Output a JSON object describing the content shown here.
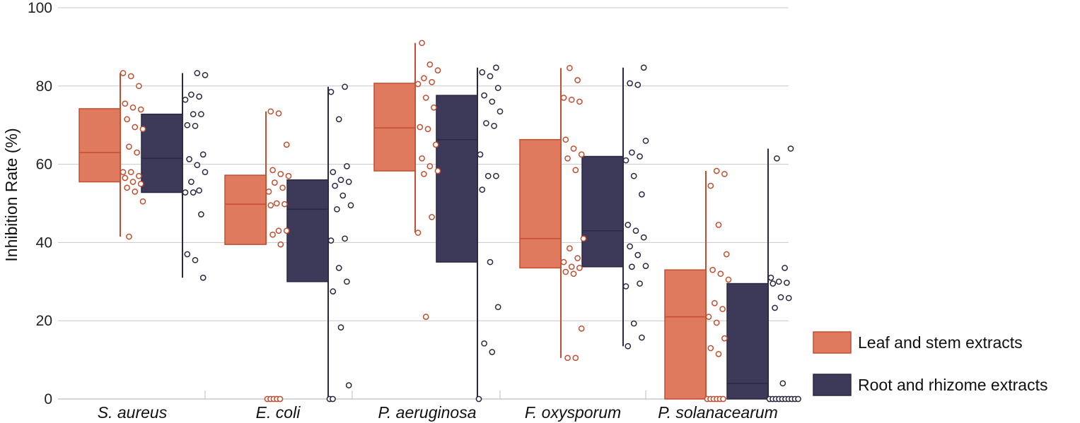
{
  "chart_data": {
    "type": "boxplot",
    "title": "",
    "xlabel": "",
    "ylabel": "Inhibition Rate (%)",
    "ylim": [
      0,
      100
    ],
    "yticks": [
      0,
      20,
      40,
      60,
      80,
      100
    ],
    "grid": true,
    "legend_position": "bottom-right",
    "categories": [
      "S. aureus",
      "E. coli",
      "P. aeruginosa",
      "F. oxysporum",
      "P. solanacearum"
    ],
    "series": [
      {
        "name": "Leaf and stem extracts",
        "color": "#E07A5F",
        "stroke": "#C24E30",
        "boxes": [
          {
            "whisker_low": 41.5,
            "q1": 55.5,
            "median": 63,
            "q3": 74.2,
            "whisker_high": 83.3,
            "points": [
              83.3,
              82.5,
              80,
              75.5,
              74.5,
              74,
              71.5,
              69.5,
              69,
              64.5,
              63,
              58,
              58,
              57,
              56.5,
              55.5,
              55,
              54,
              53,
              50.5,
              41.5
            ]
          },
          {
            "whisker_low": 39.5,
            "q1": 39.5,
            "median": 49.8,
            "q3": 57.2,
            "whisker_high": 73.5,
            "points": [
              73.5,
              73,
              65,
              58.5,
              57.5,
              57,
              55.3,
              54,
              53,
              50,
              49.8,
              49.5,
              43,
              43,
              42,
              39.5,
              0,
              0,
              0,
              0,
              0
            ]
          },
          {
            "whisker_low": 42.5,
            "q1": 58.3,
            "median": 69.3,
            "q3": 80.7,
            "whisker_high": 91,
            "points": [
              91,
              85.5,
              84,
              82,
              81,
              80.5,
              77,
              74.5,
              69.5,
              69,
              65,
              61.5,
              59.5,
              58.3,
              57.5,
              46.5,
              42.5,
              21
            ]
          },
          {
            "whisker_low": 10.5,
            "q1": 33.5,
            "median": 41,
            "q3": 66.3,
            "whisker_high": 84.6,
            "points": [
              84.6,
              81.5,
              77,
              76.5,
              76,
              66.3,
              64,
              62.5,
              61.5,
              58.5,
              41,
              38.5,
              36,
              35,
              33.8,
              33.5,
              32.5,
              32,
              18,
              10.5,
              10.5
            ]
          },
          {
            "whisker_low": 0,
            "q1": 0,
            "median": 21,
            "q3": 33,
            "whisker_high": 58.3,
            "points": [
              58.3,
              57.5,
              54.5,
              44.5,
              37,
              33,
              32,
              30.5,
              24.5,
              23,
              21,
              19.5,
              15.5,
              13,
              11.5,
              0,
              0,
              0,
              0,
              0,
              0
            ]
          }
        ]
      },
      {
        "name": "Root and rhizome extracts",
        "color": "#3C3A58",
        "stroke": "#2A2840",
        "boxes": [
          {
            "whisker_low": 31,
            "q1": 52.8,
            "median": 61.5,
            "q3": 72.8,
            "whisker_high": 83.3,
            "points": [
              83.3,
              82.8,
              77.8,
              77.3,
              76.5,
              72.8,
              72.8,
              70,
              69.8,
              62.5,
              61.3,
              59.8,
              58,
              55.5,
              53.3,
              52.8,
              52.8,
              47.2,
              37,
              35.5,
              31
            ]
          },
          {
            "whisker_low": 0,
            "q1": 30,
            "median": 48.5,
            "q3": 56,
            "whisker_high": 79.8,
            "points": [
              79.8,
              78.5,
              71.5,
              59.5,
              58,
              56,
              55.5,
              54.5,
              52,
              49.5,
              48.5,
              41,
              40.5,
              33.5,
              30,
              27.5,
              18.3,
              3.5,
              0,
              0
            ]
          },
          {
            "whisker_low": 0,
            "q1": 35,
            "median": 66.3,
            "q3": 77.6,
            "whisker_high": 84.7,
            "points": [
              84.7,
              83.5,
              82.5,
              79.5,
              77.6,
              76,
              73.5,
              70.5,
              69.8,
              62.5,
              57,
              57,
              53.5,
              35,
              23.5,
              14.2,
              12,
              0
            ]
          },
          {
            "whisker_low": 13.5,
            "q1": 33.8,
            "median": 43,
            "q3": 62,
            "whisker_high": 84.7,
            "points": [
              84.7,
              80.7,
              80.3,
              66,
              63,
              62,
              61,
              57,
              52.3,
              44.5,
              43,
              41.3,
              39,
              36.8,
              34,
              33.8,
              29.5,
              28.8,
              19.3,
              15.7,
              13.5
            ]
          },
          {
            "whisker_low": 0,
            "q1": 0,
            "median": 4,
            "q3": 29.5,
            "whisker_high": 64,
            "points": [
              64,
              61.5,
              33.5,
              31,
              30,
              29.7,
              29.5,
              26,
              25.8,
              23.3,
              4,
              0,
              0,
              0,
              0,
              0,
              0,
              0,
              0,
              0,
              0
            ]
          }
        ]
      }
    ]
  }
}
